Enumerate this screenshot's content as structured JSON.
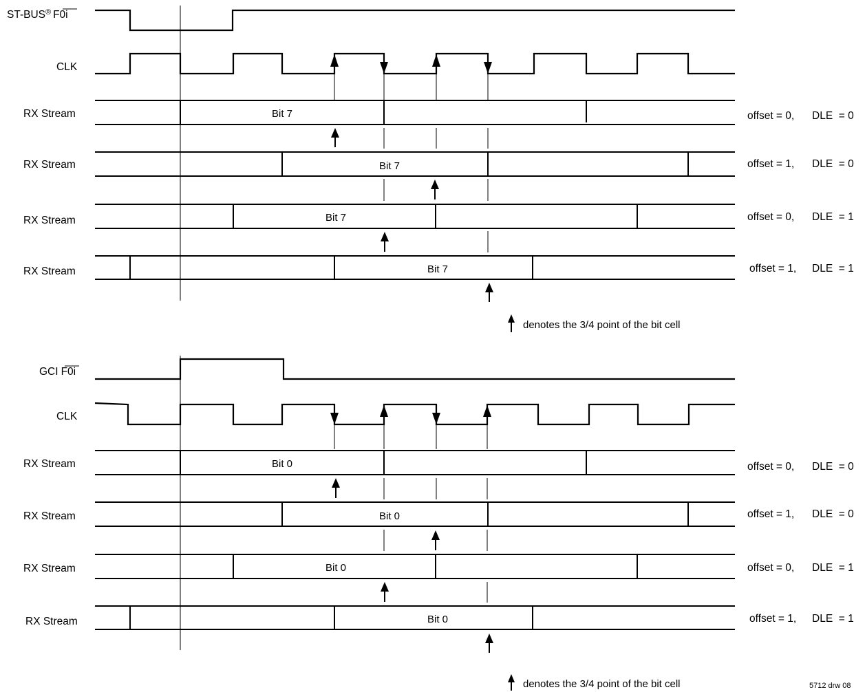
{
  "sections": [
    {
      "frame_label": "ST-BUS",
      "frame_reg": "®",
      "frame_signal": "F0i",
      "clk_label": "CLK",
      "rows": [
        {
          "label": "RX Stream",
          "bit": "Bit 7",
          "offset_text": "offset = 0,",
          "dle_text": "DLE  = 0"
        },
        {
          "label": "RX Stream",
          "bit": "Bit 7",
          "offset_text": "offset = 1,",
          "dle_text": "DLE  = 0"
        },
        {
          "label": "RX Stream",
          "bit": "Bit 7",
          "offset_text": "offset = 0,",
          "dle_text": "DLE  = 1"
        },
        {
          "label": "RX Stream",
          "bit": "Bit 7",
          "offset_text": "offset = 1,",
          "dle_text": "DLE  = 1"
        }
      ],
      "legend": "denotes the 3/4 point of the bit cell"
    },
    {
      "frame_label": "GCI",
      "frame_signal": "F0i",
      "clk_label": "CLK",
      "rows": [
        {
          "label": "RX Stream",
          "bit": "Bit 0",
          "offset_text": "offset = 0,",
          "dle_text": "DLE  = 0"
        },
        {
          "label": "RX Stream",
          "bit": "Bit 0",
          "offset_text": "offset = 1,",
          "dle_text": "DLE  = 0"
        },
        {
          "label": "RX Stream",
          "bit": "Bit 0",
          "offset_text": "offset = 0,",
          "dle_text": "DLE  = 1"
        },
        {
          "label": "RX Stream",
          "bit": "Bit 0",
          "offset_text": "offset = 1,",
          "dle_text": "DLE  = 1"
        }
      ],
      "legend": "denotes the 3/4 point of the bit cell"
    }
  ],
  "figure_id": "5712 drw 08"
}
